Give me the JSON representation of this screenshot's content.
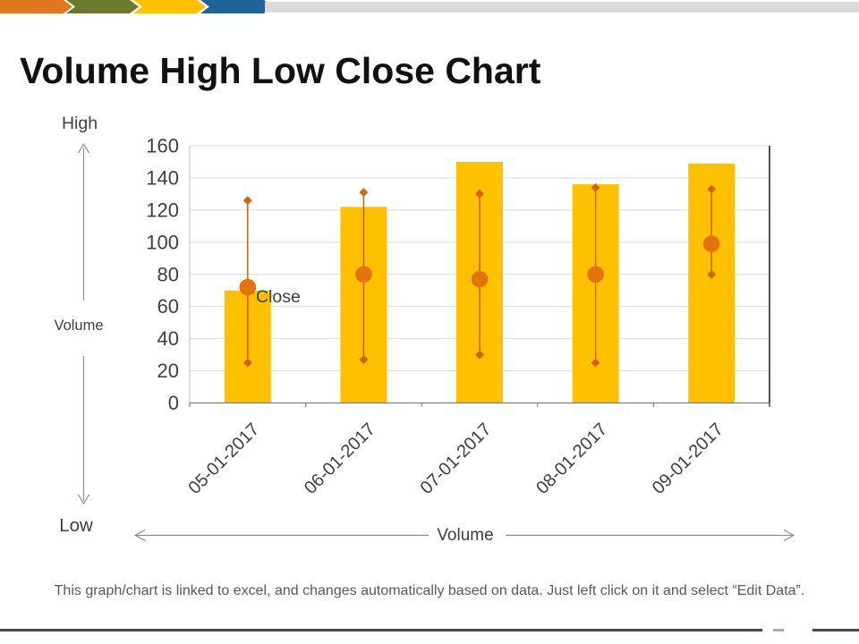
{
  "slide_title": "Volume High Low Close Chart",
  "labels": {
    "high": "High",
    "low": "Low",
    "volume_vertical": "Volume",
    "volume_horizontal": "Volume",
    "close_annotation": "Close"
  },
  "footer_note": "This graph/chart is linked to excel, and changes automatically based on data. Just left click on it and select “Edit Data”.",
  "colors": {
    "bar_fill": "#FFC000",
    "close_marker": "#E2740C",
    "hilo_marker": "#D0660F",
    "hilo_line": "#C55A11",
    "grid_line": "#D9D9D9",
    "axis_line": "#808080",
    "left_axis_line": "#BFBFBF",
    "right_axis_line": "#262626",
    "axis_text": "#404040",
    "annotation_text": "#3F3F3F",
    "arrow": "#8C8C8C",
    "footer_text": "#595959",
    "chevrons": [
      "#E2761E",
      "#6A7B2D",
      "#FFC000",
      "#1F6499"
    ],
    "header_bar": "#D9D9D9",
    "bottom_line": "#3C4C57",
    "bottom_line_faint": "#C4CDD3"
  },
  "chart_data": {
    "type": "bar",
    "subtype": "volume-high-low-close",
    "title": "",
    "xlabel": "Volume",
    "ylabel": "Volume",
    "categories": [
      "05-01-2017",
      "06-01-2017",
      "07-01-2017",
      "08-01-2017",
      "09-01-2017"
    ],
    "series": [
      {
        "name": "Volume",
        "type": "bar",
        "values": [
          70,
          122,
          150,
          136,
          149
        ]
      },
      {
        "name": "High",
        "type": "point",
        "values": [
          126,
          131,
          130,
          134,
          133
        ]
      },
      {
        "name": "Low",
        "type": "point",
        "values": [
          25,
          27,
          30,
          25,
          80
        ]
      },
      {
        "name": "Close",
        "type": "point",
        "values": [
          72,
          80,
          77,
          80,
          99
        ]
      }
    ],
    "ylim": [
      0,
      160
    ],
    "ytick_step": 20,
    "yticks": [
      0,
      20,
      40,
      60,
      80,
      100,
      120,
      140,
      160
    ],
    "grid": true,
    "legend": false
  }
}
